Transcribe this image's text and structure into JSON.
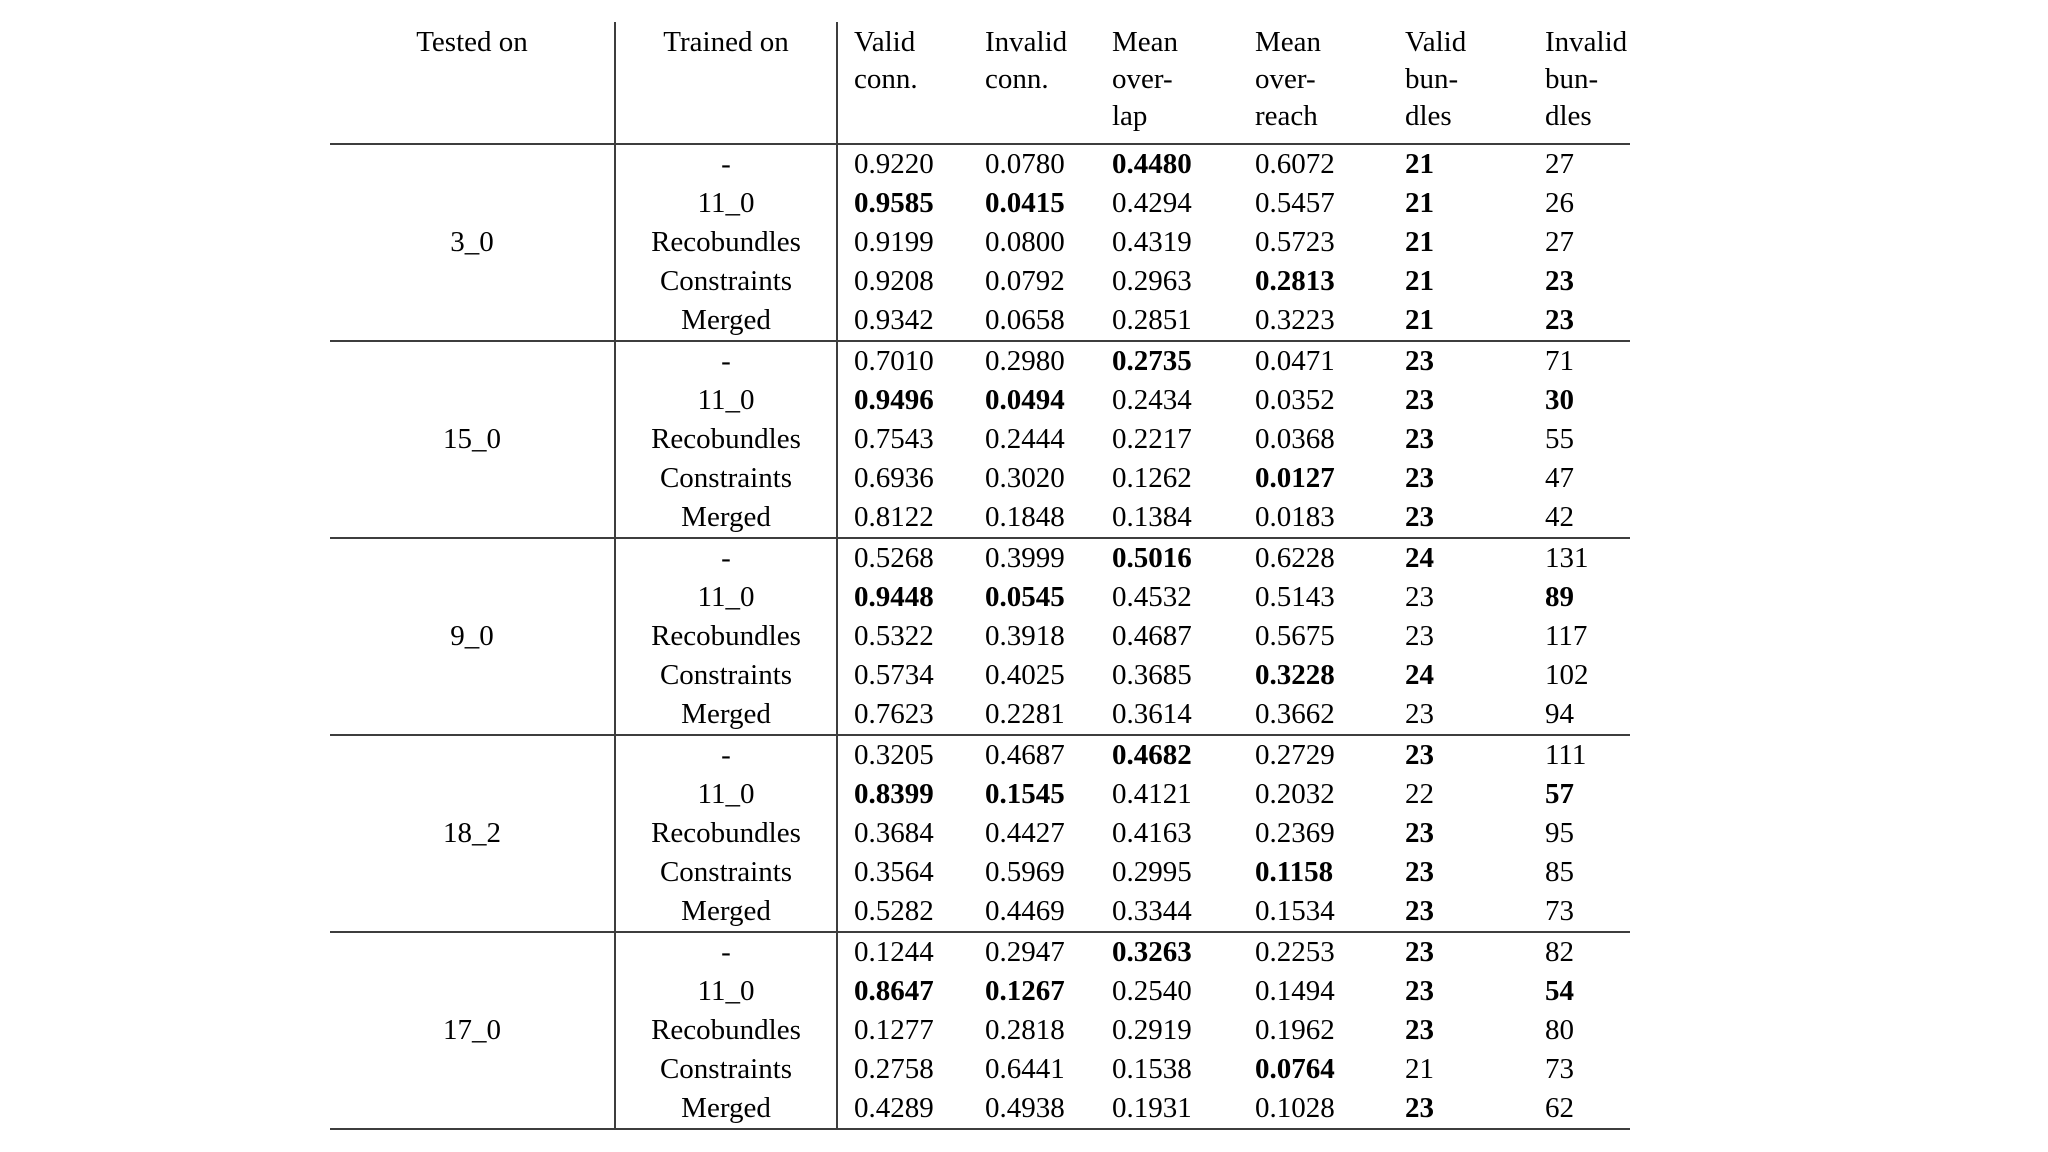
{
  "style": {
    "text_color": "#000000",
    "rule_color": "#3d3d3d",
    "page_background": "#ffffff"
  },
  "table": {
    "columns": [
      {
        "key": "tested_on",
        "label": "Tested on"
      },
      {
        "key": "trained_on",
        "label": "Trained on"
      },
      {
        "key": "valid_conn",
        "label": "Valid\nconn."
      },
      {
        "key": "invalid_conn",
        "label": "Invalid\nconn."
      },
      {
        "key": "mean_overlap",
        "label": "Mean\nover-\nlap"
      },
      {
        "key": "mean_overreach",
        "label": "Mean\nover-\nreach"
      },
      {
        "key": "valid_bundles",
        "label": "Valid\nbun-\ndles"
      },
      {
        "key": "invalid_bundles",
        "label": "Invalid\nbun-\ndles"
      }
    ],
    "groups": [
      {
        "tested_on": "3_0",
        "rows": [
          {
            "trained_on": "-",
            "values": [
              "0.9220",
              "0.0780",
              "0.4480",
              "0.6072",
              "21",
              "27"
            ],
            "bold": [
              2,
              4
            ]
          },
          {
            "trained_on": "11_0",
            "values": [
              "0.9585",
              "0.0415",
              "0.4294",
              "0.5457",
              "21",
              "26"
            ],
            "bold": [
              0,
              1,
              4
            ]
          },
          {
            "trained_on": "Recobundles",
            "values": [
              "0.9199",
              "0.0800",
              "0.4319",
              "0.5723",
              "21",
              "27"
            ],
            "bold": [
              4
            ]
          },
          {
            "trained_on": "Constraints",
            "values": [
              "0.9208",
              "0.0792",
              "0.2963",
              "0.2813",
              "21",
              "23"
            ],
            "bold": [
              3,
              4,
              5
            ]
          },
          {
            "trained_on": "Merged",
            "values": [
              "0.9342",
              "0.0658",
              "0.2851",
              "0.3223",
              "21",
              "23"
            ],
            "bold": [
              4,
              5
            ]
          }
        ]
      },
      {
        "tested_on": "15_0",
        "rows": [
          {
            "trained_on": "-",
            "values": [
              "0.7010",
              "0.2980",
              "0.2735",
              "0.0471",
              "23",
              "71"
            ],
            "bold": [
              2,
              4
            ]
          },
          {
            "trained_on": "11_0",
            "values": [
              "0.9496",
              "0.0494",
              "0.2434",
              "0.0352",
              "23",
              "30"
            ],
            "bold": [
              0,
              1,
              4,
              5
            ]
          },
          {
            "trained_on": "Recobundles",
            "values": [
              "0.7543",
              "0.2444",
              "0.2217",
              "0.0368",
              "23",
              "55"
            ],
            "bold": [
              4
            ]
          },
          {
            "trained_on": "Constraints",
            "values": [
              "0.6936",
              "0.3020",
              "0.1262",
              "0.0127",
              "23",
              "47"
            ],
            "bold": [
              3,
              4
            ]
          },
          {
            "trained_on": "Merged",
            "values": [
              "0.8122",
              "0.1848",
              "0.1384",
              "0.0183",
              "23",
              "42"
            ],
            "bold": [
              4
            ]
          }
        ]
      },
      {
        "tested_on": "9_0",
        "rows": [
          {
            "trained_on": "-",
            "values": [
              "0.5268",
              "0.3999",
              "0.5016",
              "0.6228",
              "24",
              "131"
            ],
            "bold": [
              2,
              4
            ]
          },
          {
            "trained_on": "11_0",
            "values": [
              "0.9448",
              "0.0545",
              "0.4532",
              "0.5143",
              "23",
              "89"
            ],
            "bold": [
              0,
              1,
              5
            ]
          },
          {
            "trained_on": "Recobundles",
            "values": [
              "0.5322",
              "0.3918",
              "0.4687",
              "0.5675",
              "23",
              "117"
            ],
            "bold": []
          },
          {
            "trained_on": "Constraints",
            "values": [
              "0.5734",
              "0.4025",
              "0.3685",
              "0.3228",
              "24",
              "102"
            ],
            "bold": [
              3,
              4
            ]
          },
          {
            "trained_on": "Merged",
            "values": [
              "0.7623",
              "0.2281",
              "0.3614",
              "0.3662",
              "23",
              "94"
            ],
            "bold": []
          }
        ]
      },
      {
        "tested_on": "18_2",
        "rows": [
          {
            "trained_on": "-",
            "values": [
              "0.3205",
              "0.4687",
              "0.4682",
              "0.2729",
              "23",
              "111"
            ],
            "bold": [
              2,
              4
            ]
          },
          {
            "trained_on": "11_0",
            "values": [
              "0.8399",
              "0.1545",
              "0.4121",
              "0.2032",
              "22",
              "57"
            ],
            "bold": [
              0,
              1,
              5
            ]
          },
          {
            "trained_on": "Recobundles",
            "values": [
              "0.3684",
              "0.4427",
              "0.4163",
              "0.2369",
              "23",
              "95"
            ],
            "bold": [
              4
            ]
          },
          {
            "trained_on": "Constraints",
            "values": [
              "0.3564",
              "0.5969",
              "0.2995",
              "0.1158",
              "23",
              "85"
            ],
            "bold": [
              3,
              4
            ]
          },
          {
            "trained_on": "Merged",
            "values": [
              "0.5282",
              "0.4469",
              "0.3344",
              "0.1534",
              "23",
              "73"
            ],
            "bold": [
              4
            ]
          }
        ]
      },
      {
        "tested_on": "17_0",
        "rows": [
          {
            "trained_on": "-",
            "values": [
              "0.1244",
              "0.2947",
              "0.3263",
              "0.2253",
              "23",
              "82"
            ],
            "bold": [
              2,
              4
            ]
          },
          {
            "trained_on": "11_0",
            "values": [
              "0.8647",
              "0.1267",
              "0.2540",
              "0.1494",
              "23",
              "54"
            ],
            "bold": [
              0,
              1,
              4,
              5
            ]
          },
          {
            "trained_on": "Recobundles",
            "values": [
              "0.1277",
              "0.2818",
              "0.2919",
              "0.1962",
              "23",
              "80"
            ],
            "bold": [
              4
            ]
          },
          {
            "trained_on": "Constraints",
            "values": [
              "0.2758",
              "0.6441",
              "0.1538",
              "0.0764",
              "21",
              "73"
            ],
            "bold": [
              3
            ]
          },
          {
            "trained_on": "Merged",
            "values": [
              "0.4289",
              "0.4938",
              "0.1931",
              "0.1028",
              "23",
              "62"
            ],
            "bold": [
              4
            ]
          }
        ]
      }
    ]
  }
}
